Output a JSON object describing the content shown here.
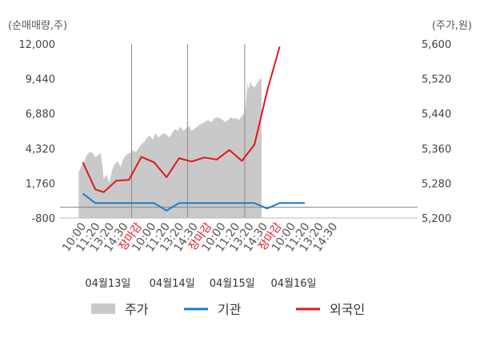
{
  "chart_data": {
    "type": "line",
    "units": {
      "left": "(순매매량,주)",
      "right": "(주가,원)"
    },
    "y_left": {
      "min": -800,
      "max": 12000,
      "ticks": [
        "12,000",
        "9,440",
        "6,880",
        "4,320",
        "1,760",
        "-800"
      ]
    },
    "y_right": {
      "min": 5200,
      "max": 5600,
      "ticks": [
        "5,600",
        "5,520",
        "5,440",
        "5,360",
        "5,280",
        "5,200"
      ]
    },
    "x_ticks": [
      {
        "label": "10:00",
        "close": false
      },
      {
        "label": "11:20",
        "close": false
      },
      {
        "label": "13:20",
        "close": false
      },
      {
        "label": "14:30",
        "close": false
      },
      {
        "label": "장마감",
        "close": true
      },
      {
        "label": "10:00",
        "close": false
      },
      {
        "label": "11:20",
        "close": false
      },
      {
        "label": "13:20",
        "close": false
      },
      {
        "label": "14:30",
        "close": false
      },
      {
        "label": "장마감",
        "close": true
      },
      {
        "label": "10:00",
        "close": false
      },
      {
        "label": "11:20",
        "close": false
      },
      {
        "label": "13:20",
        "close": false
      },
      {
        "label": "14:30",
        "close": false
      },
      {
        "label": "장마감",
        "close": true
      },
      {
        "label": "10:00",
        "close": false
      },
      {
        "label": "11:20",
        "close": false
      },
      {
        "label": "13:20",
        "close": false
      },
      {
        "label": "14:30",
        "close": false
      }
    ],
    "day_separators_at_index": [
      3.7,
      7.7,
      11.8
    ],
    "dates": [
      {
        "label": "04월13일",
        "at_index": 2.0
      },
      {
        "label": "04월14일",
        "at_index": 6.6
      },
      {
        "label": "04월15일",
        "at_index": 10.9
      },
      {
        "label": "04월16일",
        "at_index": 15.3
      }
    ],
    "price_area": {
      "name": "주가",
      "color": "#c9c9c9",
      "points": [
        [
          -0.1,
          5305
        ],
        [
          0.1,
          5320
        ],
        [
          0.3,
          5330
        ],
        [
          0.5,
          5345
        ],
        [
          0.7,
          5352
        ],
        [
          0.9,
          5350
        ],
        [
          1.1,
          5340
        ],
        [
          1.3,
          5345
        ],
        [
          1.5,
          5348
        ],
        [
          1.7,
          5290
        ],
        [
          1.9,
          5300
        ],
        [
          2.1,
          5280
        ],
        [
          2.3,
          5310
        ],
        [
          2.5,
          5325
        ],
        [
          2.7,
          5330
        ],
        [
          2.9,
          5318
        ],
        [
          3.1,
          5335
        ],
        [
          3.3,
          5345
        ],
        [
          3.6,
          5350
        ],
        [
          3.8,
          5355
        ],
        [
          4.0,
          5352
        ],
        [
          4.2,
          5360
        ],
        [
          4.4,
          5370
        ],
        [
          4.6,
          5375
        ],
        [
          4.8,
          5385
        ],
        [
          5.0,
          5390
        ],
        [
          5.2,
          5380
        ],
        [
          5.4,
          5395
        ],
        [
          5.6,
          5385
        ],
        [
          5.8,
          5390
        ],
        [
          6.0,
          5395
        ],
        [
          6.2,
          5392
        ],
        [
          6.4,
          5385
        ],
        [
          6.6,
          5395
        ],
        [
          6.8,
          5405
        ],
        [
          7.0,
          5400
        ],
        [
          7.2,
          5410
        ],
        [
          7.4,
          5400
        ],
        [
          7.6,
          5405
        ],
        [
          7.8,
          5412
        ],
        [
          8.0,
          5400
        ],
        [
          8.2,
          5405
        ],
        [
          8.4,
          5410
        ],
        [
          8.6,
          5415
        ],
        [
          8.8,
          5418
        ],
        [
          9.0,
          5422
        ],
        [
          9.2,
          5425
        ],
        [
          9.4,
          5420
        ],
        [
          9.6,
          5428
        ],
        [
          9.8,
          5432
        ],
        [
          10.0,
          5430
        ],
        [
          10.2,
          5426
        ],
        [
          10.4,
          5420
        ],
        [
          10.6,
          5425
        ],
        [
          10.8,
          5432
        ],
        [
          11.0,
          5428
        ],
        [
          11.2,
          5430
        ],
        [
          11.4,
          5425
        ],
        [
          11.6,
          5435
        ],
        [
          11.8,
          5440
        ],
        [
          11.9,
          5470
        ],
        [
          12.0,
          5510
        ],
        [
          12.1,
          5495
        ],
        [
          12.2,
          5515
        ],
        [
          12.3,
          5505
        ],
        [
          12.5,
          5500
        ],
        [
          12.7,
          5510
        ],
        [
          12.9,
          5520
        ],
        [
          13.0,
          5520
        ]
      ]
    },
    "series": [
      {
        "name": "기관",
        "color": "#1a7cc9",
        "points": [
          [
            0.2,
            1000
          ],
          [
            1.1,
            300
          ],
          [
            1.7,
            300
          ],
          [
            2.6,
            300
          ],
          [
            3.5,
            300
          ],
          [
            4.4,
            300
          ],
          [
            5.3,
            300
          ],
          [
            6.2,
            -250
          ],
          [
            7.1,
            300
          ],
          [
            8.0,
            300
          ],
          [
            8.9,
            300
          ],
          [
            9.8,
            300
          ],
          [
            10.7,
            300
          ],
          [
            11.6,
            300
          ],
          [
            12.5,
            300
          ],
          [
            13.4,
            -100
          ],
          [
            14.3,
            300
          ],
          [
            15.2,
            300
          ],
          [
            16.1,
            300
          ]
        ]
      },
      {
        "name": "외국인",
        "color": "#e0161c",
        "points": [
          [
            0.2,
            3300
          ],
          [
            1.1,
            1300
          ],
          [
            1.7,
            1100
          ],
          [
            2.6,
            1950
          ],
          [
            3.5,
            2000
          ],
          [
            4.4,
            3700
          ],
          [
            5.3,
            3300
          ],
          [
            6.2,
            2200
          ],
          [
            7.1,
            3600
          ],
          [
            8.0,
            3350
          ],
          [
            8.9,
            3650
          ],
          [
            9.8,
            3500
          ],
          [
            10.7,
            4200
          ],
          [
            11.6,
            3400
          ],
          [
            12.5,
            4600
          ],
          [
            13.4,
            8500
          ],
          [
            14.3,
            11800
          ]
        ]
      }
    ],
    "legend": [
      {
        "label": "주가",
        "kind": "area",
        "color": "#c9c9c9"
      },
      {
        "label": "기관",
        "kind": "line",
        "color": "#1a7cc9"
      },
      {
        "label": "외국인",
        "kind": "line",
        "color": "#e0161c"
      }
    ]
  }
}
